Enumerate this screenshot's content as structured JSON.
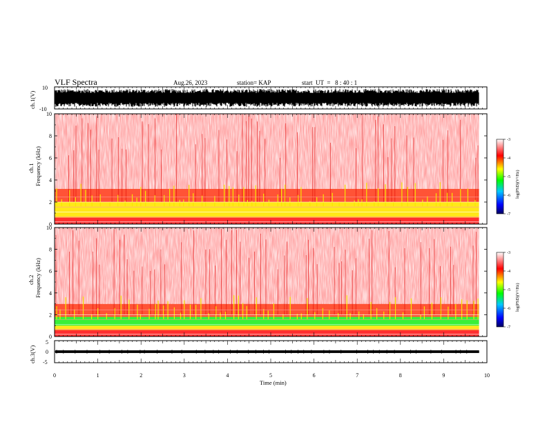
{
  "header": {
    "title": "VLF Spectra",
    "date": "Aug.26, 2023",
    "station": "station= KAP",
    "start": "start  UT  =   8 : 40 : 1"
  },
  "chart_data": [
    {
      "type": "line",
      "panel": "ch1-waveform",
      "ylabel": "ch.1(V)",
      "ylim": [
        -10,
        10
      ],
      "yticks": [
        "10",
        "-10"
      ],
      "xlim": [
        0,
        10
      ],
      "description_values": "dense oscillating signal filling roughly -8 to 8 V over 0-9.8 min",
      "envelope": {
        "upper": 8,
        "lower": -8
      },
      "x_end": 9.82
    },
    {
      "type": "heatmap",
      "panel": "ch1-spectrogram",
      "ylabel": "ch.1\nFrequency (kHz)",
      "ylabel_line1": "ch.1",
      "ylabel_line2": "Frequency (kHz)",
      "ylim": [
        0,
        10
      ],
      "yticks": [
        "0",
        "2",
        "4",
        "6",
        "8",
        "10"
      ],
      "xlim": [
        0,
        10
      ],
      "x_end": 9.82,
      "bands": [
        {
          "from": 0,
          "to": 0.6,
          "level": "red"
        },
        {
          "from": 0.6,
          "to": 1.1,
          "level": "yellow"
        },
        {
          "from": 1.1,
          "to": 2.0,
          "level": "yellow"
        },
        {
          "from": 2.0,
          "to": 3.2,
          "level": "orange"
        },
        {
          "from": 3.2,
          "to": 10,
          "level": "light-red"
        }
      ],
      "colorbar": {
        "label": "log(PSD)(V²/Hz)",
        "ticks": [
          "-3",
          "-4",
          "-5",
          "-6",
          "-7"
        ],
        "range": [
          -7,
          -3
        ]
      }
    },
    {
      "type": "heatmap",
      "panel": "ch2-spectrogram",
      "ylabel_line1": "ch.2",
      "ylabel_line2": "Frequency (kHz)",
      "ylim": [
        0,
        10
      ],
      "yticks": [
        "0",
        "2",
        "4",
        "6",
        "8",
        "10"
      ],
      "xlim": [
        0,
        10
      ],
      "x_end": 9.82,
      "bands": [
        {
          "from": 0,
          "to": 0.6,
          "level": "red"
        },
        {
          "from": 0.6,
          "to": 1.0,
          "level": "yellow"
        },
        {
          "from": 1.0,
          "to": 1.8,
          "level": "green"
        },
        {
          "from": 1.8,
          "to": 3.0,
          "level": "orange"
        },
        {
          "from": 3.0,
          "to": 10,
          "level": "light-red"
        }
      ],
      "colorbar": {
        "label": "log(PSD)(V²/Hz)",
        "ticks": [
          "-3",
          "-4",
          "-5",
          "-6",
          "-7"
        ],
        "range": [
          -7,
          -3
        ]
      }
    },
    {
      "type": "line",
      "panel": "ch3-waveform",
      "ylabel": "ch.3(V)",
      "ylim": [
        -5,
        5
      ],
      "yticks": [
        "5",
        "0",
        "-5"
      ],
      "xlim": [
        0,
        10
      ],
      "level": 0,
      "envelope": {
        "upper": 0.6,
        "lower": -0.6
      },
      "x_end": 9.82
    }
  ],
  "xaxis": {
    "label": "Time (min)",
    "ticks": [
      "0",
      "1",
      "2",
      "3",
      "4",
      "5",
      "6",
      "7",
      "8",
      "9",
      "10"
    ]
  },
  "colors": {
    "cmap": [
      "#000080",
      "#0000ff",
      "#00ffff",
      "#00ff00",
      "#ffff00",
      "#ff0000",
      "#ffffff"
    ]
  }
}
